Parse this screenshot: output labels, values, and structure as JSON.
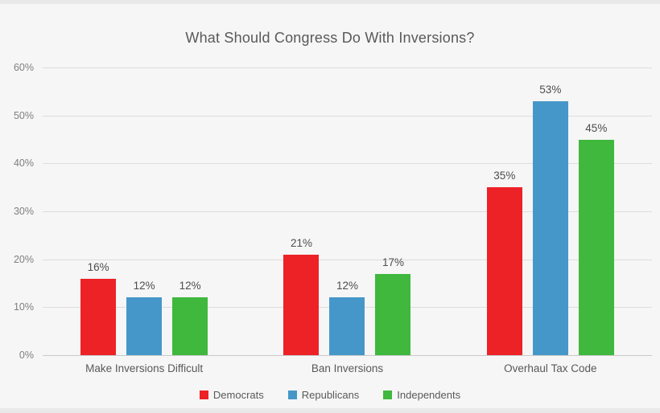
{
  "title": "What Should Congress Do With Inversions?",
  "chart_data": {
    "type": "bar",
    "title": "What Should Congress Do With Inversions?",
    "categories": [
      "Make Inversions Difficult",
      "Ban Inversions",
      "Overhaul Tax Code"
    ],
    "series": [
      {
        "name": "Democrats",
        "color": "#ec2227",
        "values": [
          16,
          21,
          35
        ]
      },
      {
        "name": "Republicans",
        "color": "#4697c9",
        "values": [
          12,
          12,
          53
        ]
      },
      {
        "name": "Independents",
        "color": "#3fb83d",
        "values": [
          12,
          17,
          45
        ]
      }
    ],
    "data_labels": [
      [
        "16%",
        "21%",
        "35%"
      ],
      [
        "12%",
        "12%",
        "53%"
      ],
      [
        "12%",
        "17%",
        "45%"
      ]
    ],
    "ylim": [
      0,
      60
    ],
    "ytick_step": 10,
    "ytick_labels": [
      "0%",
      "10%",
      "20%",
      "30%",
      "40%",
      "50%",
      "60%"
    ],
    "grid": true,
    "legend_position": "bottom",
    "colors": {
      "background": "#f6f6f6",
      "edge_band": "#e9e9e9",
      "gridline": "#dddddd",
      "axis_line": "#c9c9c9",
      "title_text": "#595959",
      "tick_text": "#7f7f7f",
      "label_text": "#4d4d4d"
    }
  }
}
